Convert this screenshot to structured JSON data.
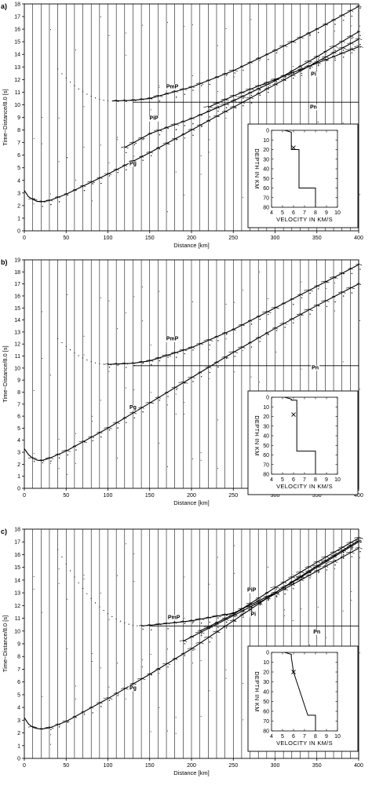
{
  "chart_data": [
    {
      "panel_label": "a)",
      "type": "line",
      "xlabel": "Distance [km]",
      "ylabel": "Time−Distance/8.0 [s]",
      "xlim": [
        0,
        400
      ],
      "ylim": [
        0,
        18
      ],
      "x_ticks": [
        0,
        50,
        100,
        150,
        200,
        250,
        300,
        350,
        400
      ],
      "y_ticks": [
        0,
        1,
        2,
        3,
        4,
        5,
        6,
        7,
        8,
        9,
        10,
        11,
        12,
        13,
        14,
        15,
        16,
        17,
        18
      ],
      "grid": false,
      "series": [
        {
          "name": "Pg",
          "x": [
            0,
            5,
            10,
            15,
            20,
            30,
            50,
            100,
            150,
            200,
            250,
            300,
            350,
            400
          ],
          "y": [
            3.2,
            2.7,
            2.5,
            2.35,
            2.3,
            2.4,
            2.9,
            4.5,
            6.2,
            8.0,
            9.8,
            11.6,
            13.4,
            15.2
          ]
        },
        {
          "name": "PiP",
          "x": [
            120,
            150,
            200,
            250,
            300,
            350,
            400
          ],
          "y": [
            6.6,
            7.7,
            8.9,
            10.3,
            11.9,
            13.8,
            15.8
          ]
        },
        {
          "name": "PmP",
          "x": [
            105,
            130,
            150,
            200,
            250,
            300,
            350,
            400
          ],
          "y": [
            10.3,
            10.35,
            10.5,
            11.4,
            12.7,
            14.3,
            16.0,
            17.8
          ]
        },
        {
          "name": "Pi",
          "x": [
            220,
            250,
            300,
            350,
            400
          ],
          "y": [
            9.8,
            10.7,
            12.0,
            13.3,
            14.6
          ]
        },
        {
          "name": "Pn",
          "x": [
            130,
            400
          ],
          "y": [
            10.2,
            10.2
          ]
        }
      ],
      "labels": [
        {
          "text": "PmP",
          "x": 177,
          "y": 11.3
        },
        {
          "text": "PiP",
          "x": 155,
          "y": 8.8
        },
        {
          "text": "Pg",
          "x": 130,
          "y": 5.2
        },
        {
          "text": "Pi",
          "x": 346,
          "y": 12.3
        },
        {
          "text": "Pn",
          "x": 346,
          "y": 9.7
        }
      ],
      "inset": {
        "xlabel": "VELOCITY IN KM/S",
        "ylabel": "DEPTH IN KM",
        "xlim": [
          4,
          10
        ],
        "ylim": [
          0,
          80
        ],
        "x_ticks": [
          4,
          5,
          6,
          7,
          8,
          9,
          10
        ],
        "y_ticks": [
          0,
          10,
          20,
          30,
          40,
          50,
          60,
          70,
          80
        ],
        "profile": {
          "v": [
            5.2,
            5.8,
            5.8,
            6.5,
            6.5,
            8.0,
            8.0
          ],
          "d": [
            0,
            2,
            20,
            20,
            60,
            60,
            80
          ]
        },
        "marker": {
          "v": 6.0,
          "d": 18
        }
      }
    },
    {
      "panel_label": "b)",
      "type": "line",
      "xlabel": "Distance [km]",
      "ylabel": "Time−Distance/8.0 [s]",
      "xlim": [
        0,
        400
      ],
      "ylim": [
        0,
        19
      ],
      "x_ticks": [
        0,
        50,
        100,
        150,
        200,
        250,
        300,
        350,
        400
      ],
      "y_ticks": [
        0,
        1,
        2,
        3,
        4,
        5,
        6,
        7,
        8,
        9,
        10,
        11,
        12,
        13,
        14,
        15,
        16,
        17,
        18,
        19
      ],
      "grid": false,
      "series": [
        {
          "name": "Pg",
          "x": [
            0,
            5,
            10,
            15,
            20,
            30,
            50,
            100,
            150,
            200,
            250,
            300,
            350,
            400
          ],
          "y": [
            3.3,
            2.8,
            2.5,
            2.35,
            2.3,
            2.5,
            3.1,
            5.0,
            7.1,
            9.2,
            11.3,
            13.3,
            15.2,
            17.0
          ]
        },
        {
          "name": "PmP",
          "x": [
            100,
            130,
            150,
            200,
            250,
            300,
            350,
            400
          ],
          "y": [
            10.3,
            10.4,
            10.6,
            11.7,
            13.2,
            15.0,
            16.8,
            18.6
          ]
        },
        {
          "name": "Pn",
          "x": [
            130,
            400
          ],
          "y": [
            10.2,
            10.2
          ]
        }
      ],
      "labels": [
        {
          "text": "PmP",
          "x": 177,
          "y": 12.3
        },
        {
          "text": "Pg",
          "x": 130,
          "y": 6.6
        },
        {
          "text": "Pn",
          "x": 348,
          "y": 9.9
        }
      ],
      "inset": {
        "xlabel": "VELOCITY IN KM/S",
        "ylabel": "DEPTH IN KM",
        "xlim": [
          4,
          10
        ],
        "ylim": [
          0,
          80
        ],
        "x_ticks": [
          4,
          5,
          6,
          7,
          8,
          9,
          10
        ],
        "y_ticks": [
          0,
          10,
          20,
          30,
          40,
          50,
          60,
          70,
          80
        ],
        "profile": {
          "v": [
            5.2,
            5.8,
            5.8,
            6.3,
            6.3,
            8.0,
            8.0
          ],
          "d": [
            0,
            2,
            3,
            3,
            56,
            56,
            80
          ]
        },
        "marker": {
          "v": 6.0,
          "d": 18
        }
      }
    },
    {
      "panel_label": "c)",
      "type": "line",
      "xlabel": "Distance [km]",
      "ylabel": "Time−Distance/8.0 [s]",
      "xlim": [
        0,
        400
      ],
      "ylim": [
        0,
        18
      ],
      "x_ticks": [
        0,
        50,
        100,
        150,
        200,
        250,
        300,
        350,
        400
      ],
      "y_ticks": [
        0,
        1,
        2,
        3,
        4,
        5,
        6,
        7,
        8,
        9,
        10,
        11,
        12,
        13,
        14,
        15,
        16,
        17,
        18
      ],
      "grid": false,
      "series": [
        {
          "name": "Pg",
          "x": [
            0,
            5,
            10,
            15,
            20,
            30,
            50,
            100,
            150,
            200,
            250,
            300,
            350,
            400
          ],
          "y": [
            3.2,
            2.7,
            2.45,
            2.35,
            2.3,
            2.4,
            2.9,
            4.7,
            6.6,
            8.6,
            10.8,
            13.0,
            15.1,
            17.1
          ]
        },
        {
          "name": "PmP",
          "x": [
            140,
            150,
            200,
            250,
            300,
            350,
            400
          ],
          "y": [
            10.4,
            10.45,
            10.8,
            11.4,
            13.0,
            15.0,
            17.0
          ]
        },
        {
          "name": "PiP",
          "x": [
            210,
            250,
            300,
            350,
            400
          ],
          "y": [
            10.0,
            11.3,
            13.4,
            15.4,
            17.3
          ]
        },
        {
          "name": "Pi",
          "x": [
            190,
            250,
            300,
            350,
            400
          ],
          "y": [
            9.2,
            11.2,
            12.9,
            14.7,
            16.5
          ]
        },
        {
          "name": "Pn",
          "x": [
            150,
            400
          ],
          "y": [
            10.4,
            10.4
          ]
        }
      ],
      "labels": [
        {
          "text": "PmP",
          "x": 179,
          "y": 10.95
        },
        {
          "text": "PiP",
          "x": 272,
          "y": 13.1
        },
        {
          "text": "Pi",
          "x": 274,
          "y": 11.2
        },
        {
          "text": "Pg",
          "x": 130,
          "y": 5.4
        },
        {
          "text": "Pn",
          "x": 350,
          "y": 9.8
        }
      ],
      "inset": {
        "xlabel": "VELOCITY IN KM/S",
        "ylabel": "DEPTH IN KM",
        "xlim": [
          4,
          10
        ],
        "ylim": [
          0,
          80
        ],
        "x_ticks": [
          4,
          5,
          6,
          7,
          8,
          9,
          10
        ],
        "y_ticks": [
          0,
          10,
          20,
          30,
          40,
          50,
          60,
          70,
          80
        ],
        "profile": {
          "v": [
            5.2,
            5.8,
            5.8,
            6.0,
            7.3,
            8.0,
            8.0
          ],
          "d": [
            0,
            2,
            5,
            20,
            64,
            64,
            80
          ]
        },
        "marker": {
          "v": 6.0,
          "d": 20
        }
      }
    }
  ]
}
